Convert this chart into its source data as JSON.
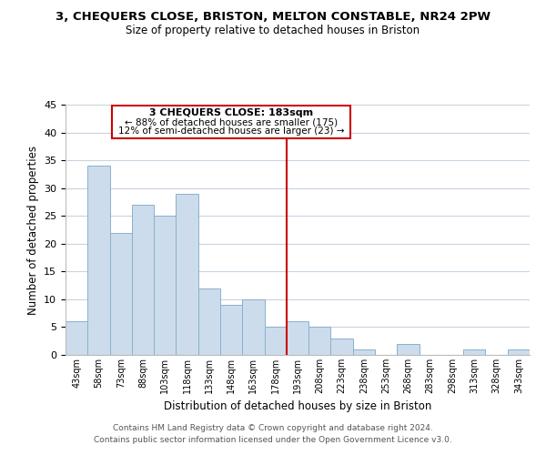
{
  "title": "3, CHEQUERS CLOSE, BRISTON, MELTON CONSTABLE, NR24 2PW",
  "subtitle": "Size of property relative to detached houses in Briston",
  "xlabel": "Distribution of detached houses by size in Briston",
  "ylabel": "Number of detached properties",
  "bar_labels": [
    "43sqm",
    "58sqm",
    "73sqm",
    "88sqm",
    "103sqm",
    "118sqm",
    "133sqm",
    "148sqm",
    "163sqm",
    "178sqm",
    "193sqm",
    "208sqm",
    "223sqm",
    "238sqm",
    "253sqm",
    "268sqm",
    "283sqm",
    "298sqm",
    "313sqm",
    "328sqm",
    "343sqm"
  ],
  "bar_values": [
    6,
    34,
    22,
    27,
    25,
    29,
    12,
    9,
    10,
    5,
    6,
    5,
    3,
    1,
    0,
    2,
    0,
    0,
    1,
    0,
    1
  ],
  "bar_color": "#ccdcec",
  "bar_edge_color": "#8ab0cc",
  "ylim": [
    0,
    45
  ],
  "yticks": [
    0,
    5,
    10,
    15,
    20,
    25,
    30,
    35,
    40,
    45
  ],
  "vline_x": 9.5,
  "vline_color": "#cc0000",
  "annotation_title": "3 CHEQUERS CLOSE: 183sqm",
  "annotation_line1": "← 88% of detached houses are smaller (175)",
  "annotation_line2": "12% of semi-detached houses are larger (23) →",
  "annotation_box_color": "#ffffff",
  "annotation_box_edge": "#cc0000",
  "footer_line1": "Contains HM Land Registry data © Crown copyright and database right 2024.",
  "footer_line2": "Contains public sector information licensed under the Open Government Licence v3.0.",
  "background_color": "#ffffff",
  "grid_color": "#c8d4e0"
}
